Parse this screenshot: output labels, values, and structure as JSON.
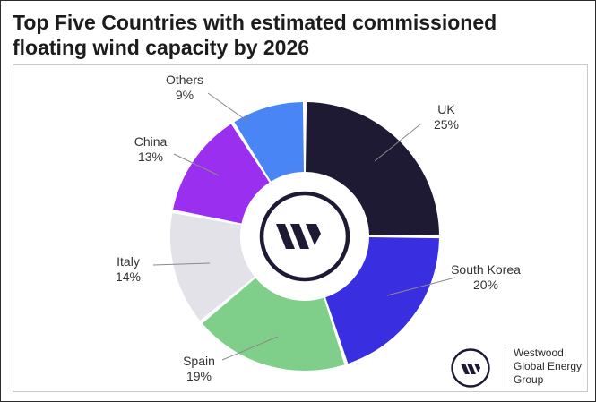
{
  "title_lines": [
    "Top Five Countries with estimated commissioned",
    "floating wind capacity by 2026"
  ],
  "brand": {
    "name_lines": [
      "Westwood",
      "Global Energy",
      "Group"
    ]
  },
  "colors": {
    "uk": "#1e1a33",
    "south_korea": "#3a2fe0",
    "spain": "#7fcf8b",
    "italy": "#e3e2e8",
    "china": "#9b2ff0",
    "others": "#4a85f5",
    "center_mark": "#1e1a33"
  },
  "center_icon": "westwood-w-logo-icon",
  "chart_data": {
    "type": "pie",
    "variant": "donut",
    "title": "Top Five Countries with estimated commissioned floating wind capacity by 2026",
    "unit": "%",
    "slices": [
      {
        "label": "UK",
        "value": 25,
        "value_label": "25%"
      },
      {
        "label": "South Korea",
        "value": 20,
        "value_label": "20%"
      },
      {
        "label": "Spain",
        "value": 19,
        "value_label": "19%"
      },
      {
        "label": "Italy",
        "value": 14,
        "value_label": "14%"
      },
      {
        "label": "China",
        "value": 13,
        "value_label": "13%"
      },
      {
        "label": "Others",
        "value": 9,
        "value_label": "9%"
      }
    ],
    "legend": "none"
  }
}
